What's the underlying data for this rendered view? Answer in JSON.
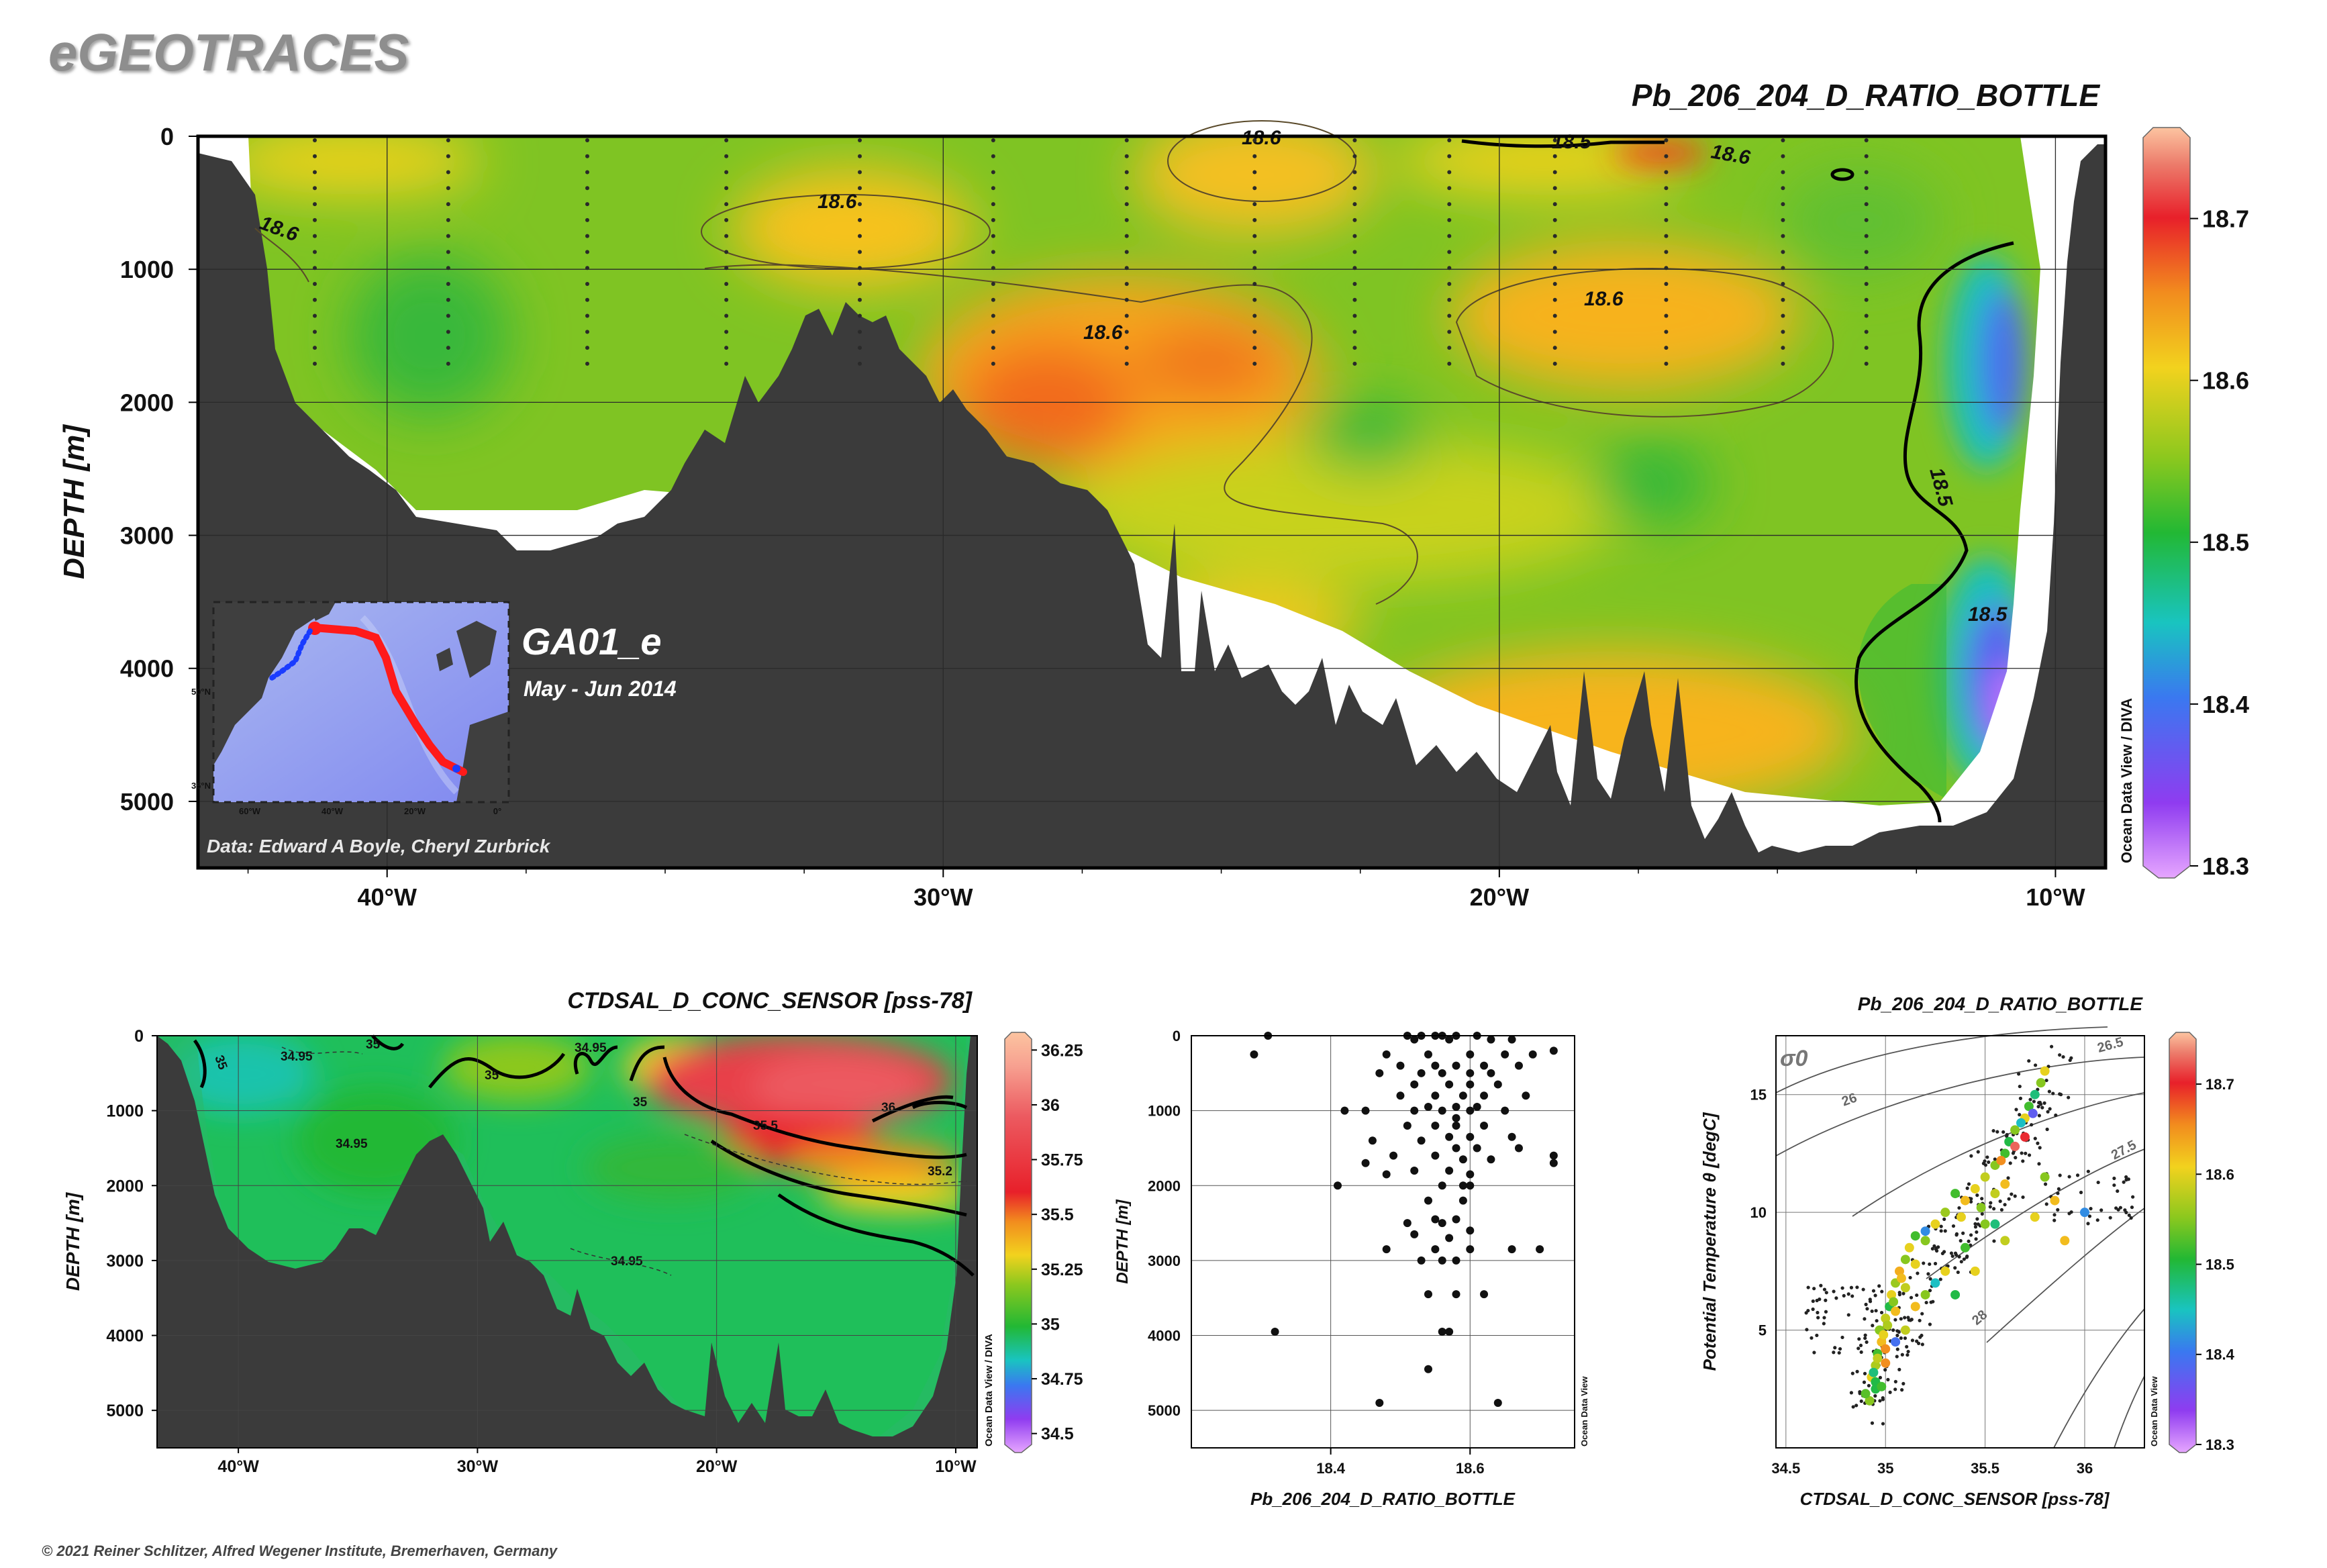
{
  "header": {
    "logo": "eGEOTRACES",
    "copyright": "© 2021 Reiner Schlitzer, Alfred Wegener Institute, Bremerhaven, Germany",
    "odv_credit": "Ocean Data View / DIVA",
    "odv_credit_short": "Ocean Data View"
  },
  "cruise": {
    "name": "GA01_e",
    "dates": "May - Jun 2014",
    "data_credit": "Data: Edward A Boyle, Cheryl Zurbrick"
  },
  "inset_map": {
    "lat_labels": [
      "50°N",
      "35°N"
    ],
    "lon_labels": [
      "60°W",
      "40°W",
      "20°W",
      "0°"
    ]
  },
  "colors": {
    "land": "#3b3b3b",
    "track_red": "#ff1a1a",
    "track_blue": "#1a3cff"
  },
  "chart_data": [
    {
      "id": "main",
      "type": "heatmap",
      "title": "Pb_206_204_D_RATIO_BOTTLE",
      "ylabel": "DEPTH [m]",
      "x_ticks": [
        "40°W",
        "30°W",
        "20°W",
        "10°W"
      ],
      "x_tick_values": [
        -40,
        -30,
        -20,
        -10
      ],
      "xlim": [
        -43.4,
        -9.1
      ],
      "y_ticks": [
        "0",
        "1000",
        "2000",
        "3000",
        "4000",
        "5000"
      ],
      "y_tick_values": [
        0,
        1000,
        2000,
        3000,
        4000,
        5000
      ],
      "ylim": [
        0,
        5500
      ],
      "colorbar": {
        "ticks": [
          "18.3",
          "18.4",
          "18.5",
          "18.6",
          "18.7"
        ],
        "tick_values": [
          18.3,
          18.4,
          18.5,
          18.6,
          18.7
        ],
        "range": [
          18.3,
          18.75
        ]
      },
      "contour_labels": [
        "18.6",
        "18.6",
        "18.6",
        "18.6",
        "18.6",
        "18.5",
        "18.6",
        "18.5",
        "18.5"
      ]
    },
    {
      "id": "salinity",
      "type": "heatmap",
      "title": "CTDSAL_D_CONC_SENSOR [pss-78]",
      "ylabel": "DEPTH [m]",
      "x_ticks": [
        "40°W",
        "30°W",
        "20°W",
        "10°W"
      ],
      "x_tick_values": [
        -40,
        -30,
        -20,
        -10
      ],
      "xlim": [
        -43.4,
        -9.1
      ],
      "y_ticks": [
        "0",
        "1000",
        "2000",
        "3000",
        "4000",
        "5000"
      ],
      "y_tick_values": [
        0,
        1000,
        2000,
        3000,
        4000,
        5000
      ],
      "ylim": [
        0,
        5500
      ],
      "colorbar": {
        "ticks": [
          "34.5",
          "34.75",
          "35",
          "35.25",
          "35.5",
          "35.75",
          "36",
          "36.25"
        ],
        "tick_values": [
          34.5,
          34.75,
          35,
          35.25,
          35.5,
          35.75,
          36,
          36.25
        ],
        "range": [
          34.45,
          36.3
        ]
      },
      "contour_labels": [
        "34.95",
        "34.95",
        "35",
        "35",
        "35",
        "35.5",
        "36",
        "35.2",
        "34.95",
        "34.95",
        "35"
      ]
    },
    {
      "id": "profile",
      "type": "scatter",
      "xlabel": "Pb_206_204_D_RATIO_BOTTLE",
      "ylabel": "DEPTH [m]",
      "x_ticks": [
        "18.4",
        "18.6"
      ],
      "x_tick_values": [
        18.4,
        18.6
      ],
      "xlim": [
        18.2,
        18.75
      ],
      "y_ticks": [
        "0",
        "1000",
        "2000",
        "3000",
        "4000",
        "5000"
      ],
      "y_tick_values": [
        0,
        1000,
        2000,
        3000,
        4000,
        5000
      ],
      "ylim": [
        0,
        5500
      ],
      "points": [
        [
          18.29,
          250
        ],
        [
          18.31,
          0
        ],
        [
          18.51,
          0
        ],
        [
          18.53,
          0
        ],
        [
          18.55,
          0
        ],
        [
          18.56,
          0
        ],
        [
          18.58,
          0
        ],
        [
          18.61,
          0
        ],
        [
          18.52,
          50
        ],
        [
          18.57,
          50
        ],
        [
          18.63,
          50
        ],
        [
          18.66,
          50
        ],
        [
          18.72,
          200
        ],
        [
          18.48,
          250
        ],
        [
          18.54,
          250
        ],
        [
          18.6,
          250
        ],
        [
          18.65,
          250
        ],
        [
          18.69,
          250
        ],
        [
          18.5,
          400
        ],
        [
          18.55,
          400
        ],
        [
          18.58,
          400
        ],
        [
          18.62,
          400
        ],
        [
          18.67,
          400
        ],
        [
          18.47,
          500
        ],
        [
          18.53,
          500
        ],
        [
          18.56,
          500
        ],
        [
          18.6,
          500
        ],
        [
          18.63,
          500
        ],
        [
          18.52,
          650
        ],
        [
          18.57,
          650
        ],
        [
          18.6,
          650
        ],
        [
          18.64,
          650
        ],
        [
          18.5,
          800
        ],
        [
          18.55,
          800
        ],
        [
          18.59,
          800
        ],
        [
          18.62,
          800
        ],
        [
          18.68,
          800
        ],
        [
          18.54,
          950
        ],
        [
          18.58,
          950
        ],
        [
          18.61,
          950
        ],
        [
          18.42,
          1000
        ],
        [
          18.45,
          1000
        ],
        [
          18.52,
          1000
        ],
        [
          18.56,
          1000
        ],
        [
          18.6,
          1000
        ],
        [
          18.65,
          1000
        ],
        [
          18.51,
          1200
        ],
        [
          18.55,
          1200
        ],
        [
          18.58,
          1200
        ],
        [
          18.62,
          1200
        ],
        [
          18.57,
          1350
        ],
        [
          18.6,
          1350
        ],
        [
          18.66,
          1350
        ],
        [
          18.46,
          1400
        ],
        [
          18.53,
          1400
        ],
        [
          18.58,
          1500
        ],
        [
          18.61,
          1500
        ],
        [
          18.67,
          1500
        ],
        [
          18.49,
          1600
        ],
        [
          18.55,
          1600
        ],
        [
          18.59,
          1650
        ],
        [
          18.63,
          1650
        ],
        [
          18.72,
          1600
        ],
        [
          18.72,
          1700
        ],
        [
          18.45,
          1700
        ],
        [
          18.52,
          1800
        ],
        [
          18.57,
          1800
        ],
        [
          18.6,
          1850
        ],
        [
          18.48,
          1850
        ],
        [
          18.41,
          2000
        ],
        [
          18.56,
          2000
        ],
        [
          18.59,
          2000
        ],
        [
          18.6,
          2000
        ],
        [
          18.54,
          2200
        ],
        [
          18.59,
          2200
        ],
        [
          18.55,
          2450
        ],
        [
          18.58,
          2450
        ],
        [
          18.51,
          2500
        ],
        [
          18.56,
          2500
        ],
        [
          18.6,
          2600
        ],
        [
          18.52,
          2650
        ],
        [
          18.57,
          2700
        ],
        [
          18.48,
          2850
        ],
        [
          18.55,
          2850
        ],
        [
          18.6,
          2850
        ],
        [
          18.66,
          2850
        ],
        [
          18.7,
          2850
        ],
        [
          18.53,
          3000
        ],
        [
          18.56,
          3000
        ],
        [
          18.58,
          3000
        ],
        [
          18.54,
          3450
        ],
        [
          18.58,
          3450
        ],
        [
          18.62,
          3450
        ],
        [
          18.32,
          3950
        ],
        [
          18.56,
          3950
        ],
        [
          18.57,
          3950
        ],
        [
          18.54,
          4450
        ],
        [
          18.47,
          4900
        ],
        [
          18.64,
          4900
        ],
        [
          18.58,
          1100
        ]
      ]
    },
    {
      "id": "ts",
      "type": "scatter",
      "title": "Pb_206_204_D_RATIO_BOTTLE",
      "xlabel": "CTDSAL_D_CONC_SENSOR [pss-78]",
      "ylabel": "Potential Temperature θ [degC]",
      "x_ticks": [
        "34.5",
        "35",
        "35.5",
        "36"
      ],
      "x_tick_values": [
        34.5,
        35,
        35.5,
        36
      ],
      "xlim": [
        34.45,
        36.3
      ],
      "y_ticks": [
        "5",
        "10",
        "15"
      ],
      "y_tick_values": [
        5,
        10,
        15
      ],
      "ylim": [
        0,
        17.5
      ],
      "sigma_label": "σ0",
      "isopycnal_labels": [
        "26",
        "26.5",
        "27.5",
        "28"
      ],
      "colorbar": {
        "ticks": [
          "18.3",
          "18.4",
          "18.5",
          "18.6",
          "18.7"
        ],
        "tick_values": [
          18.3,
          18.4,
          18.5,
          18.6,
          18.7
        ],
        "range": [
          18.3,
          18.75
        ]
      },
      "points": [
        [
          34.92,
          2.0,
          18.55
        ],
        [
          34.95,
          2.5,
          18.5
        ],
        [
          34.93,
          3.0,
          18.6
        ],
        [
          34.95,
          3.5,
          18.57
        ],
        [
          34.96,
          4.0,
          18.52
        ],
        [
          34.98,
          4.5,
          18.62
        ],
        [
          34.97,
          5.0,
          18.55
        ],
        [
          35.0,
          5.5,
          18.58
        ],
        [
          35.02,
          6.0,
          18.5
        ],
        [
          35.03,
          6.5,
          18.6
        ],
        [
          35.05,
          7.0,
          18.56
        ],
        [
          35.07,
          7.5,
          18.63
        ],
        [
          35.1,
          8.0,
          18.55
        ],
        [
          35.12,
          8.5,
          18.6
        ],
        [
          35.15,
          9.0,
          18.52
        ],
        [
          34.94,
          3.2,
          18.48
        ],
        [
          34.96,
          3.8,
          18.58
        ],
        [
          34.99,
          4.8,
          18.6
        ],
        [
          35.01,
          5.2,
          18.57
        ],
        [
          35.04,
          6.2,
          18.55
        ],
        [
          35.08,
          7.2,
          18.62
        ],
        [
          34.9,
          2.3,
          18.53
        ],
        [
          34.95,
          2.8,
          18.5
        ],
        [
          35.0,
          4.2,
          18.65
        ],
        [
          35.05,
          5.8,
          18.62
        ],
        [
          35.1,
          6.8,
          18.58
        ],
        [
          35.15,
          7.8,
          18.6
        ],
        [
          35.2,
          8.8,
          18.55
        ],
        [
          35.25,
          9.5,
          18.6
        ],
        [
          35.3,
          10.0,
          18.56
        ],
        [
          35.4,
          10.5,
          18.62
        ],
        [
          35.45,
          11.0,
          18.6
        ],
        [
          35.5,
          11.5,
          18.58
        ],
        [
          35.55,
          12.0,
          18.55
        ],
        [
          35.6,
          12.5,
          18.52
        ],
        [
          35.62,
          13.0,
          18.5
        ],
        [
          35.65,
          13.5,
          18.55
        ],
        [
          35.7,
          14.0,
          18.6
        ],
        [
          35.72,
          14.5,
          18.52
        ],
        [
          35.75,
          15.0,
          18.48
        ],
        [
          35.78,
          15.5,
          18.55
        ],
        [
          35.8,
          16.0,
          18.6
        ],
        [
          35.7,
          13.2,
          18.7
        ],
        [
          35.65,
          12.8,
          18.72
        ],
        [
          35.6,
          11.2,
          18.62
        ],
        [
          35.55,
          10.8,
          18.58
        ],
        [
          35.48,
          10.2,
          18.55
        ],
        [
          35.38,
          9.8,
          18.6
        ],
        [
          35.2,
          9.2,
          18.42
        ],
        [
          35.35,
          10.8,
          18.52
        ],
        [
          35.58,
          12.2,
          18.65
        ],
        [
          35.68,
          13.8,
          18.45
        ],
        [
          35.74,
          14.2,
          18.38
        ],
        [
          35.8,
          11.5,
          18.55
        ],
        [
          35.85,
          10.5,
          18.62
        ],
        [
          35.75,
          9.8,
          18.6
        ],
        [
          35.6,
          8.8,
          18.58
        ],
        [
          35.5,
          9.5,
          18.55
        ],
        [
          35.4,
          8.5,
          18.52
        ],
        [
          35.3,
          7.5,
          18.6
        ],
        [
          35.25,
          7.0,
          18.45
        ],
        [
          35.2,
          6.5,
          18.55
        ],
        [
          35.15,
          6.0,
          18.62
        ],
        [
          35.05,
          4.5,
          18.4
        ],
        [
          35.0,
          3.6,
          18.65
        ],
        [
          34.98,
          2.6,
          18.52
        ],
        [
          35.1,
          5.0,
          18.58
        ],
        [
          35.35,
          6.5,
          18.5
        ],
        [
          35.45,
          7.5,
          18.6
        ],
        [
          35.55,
          9.5,
          18.48
        ],
        [
          36.0,
          10.0,
          18.42
        ],
        [
          35.9,
          8.8,
          18.62
        ]
      ]
    }
  ]
}
